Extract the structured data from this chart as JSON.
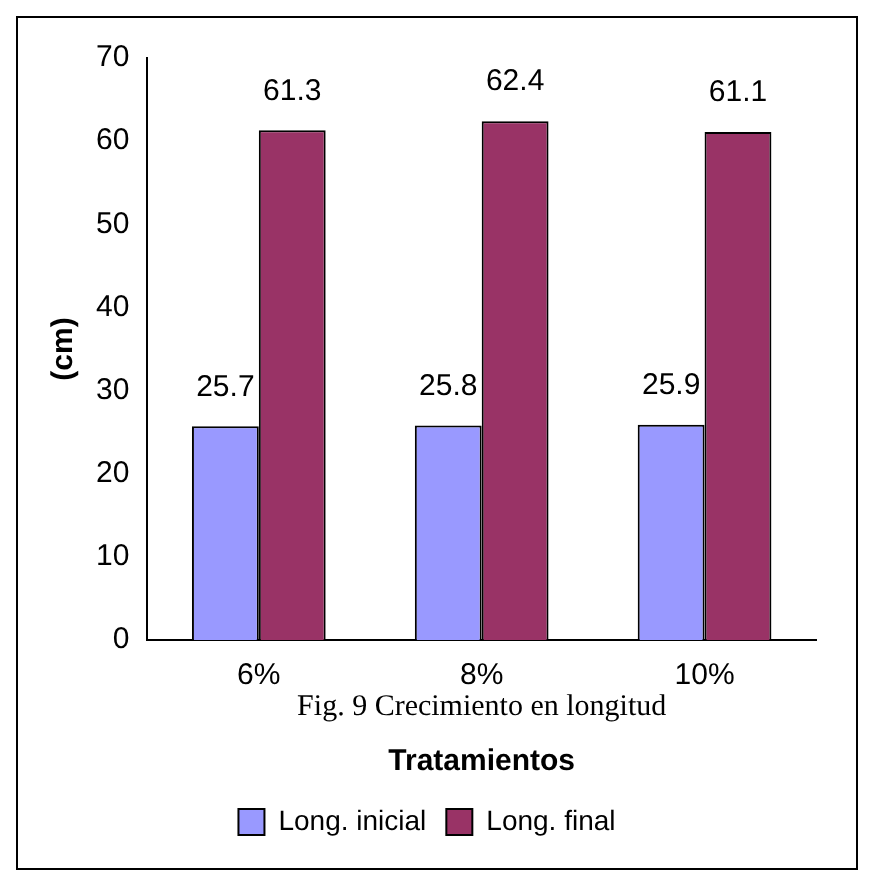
{
  "chart_data": {
    "type": "bar",
    "xlabel": "Tratamientos",
    "ylabel": "(cm)",
    "categories": [
      "6%",
      "8%",
      "10%"
    ],
    "series": [
      {
        "name": "Long. inicial",
        "color": "#9999ff",
        "values": [
          25.7,
          25.8,
          25.9
        ]
      },
      {
        "name": "Long. final",
        "color": "#993366",
        "values": [
          61.3,
          62.4,
          61.1
        ]
      }
    ],
    "ylim": [
      0,
      70
    ],
    "yticks": [
      0,
      10,
      20,
      30,
      40,
      50,
      60,
      70
    ],
    "data_labels": true,
    "legend": "bottom",
    "grid": false,
    "annotations": [
      "Fig. 9 Crecimiento en longitud"
    ]
  }
}
